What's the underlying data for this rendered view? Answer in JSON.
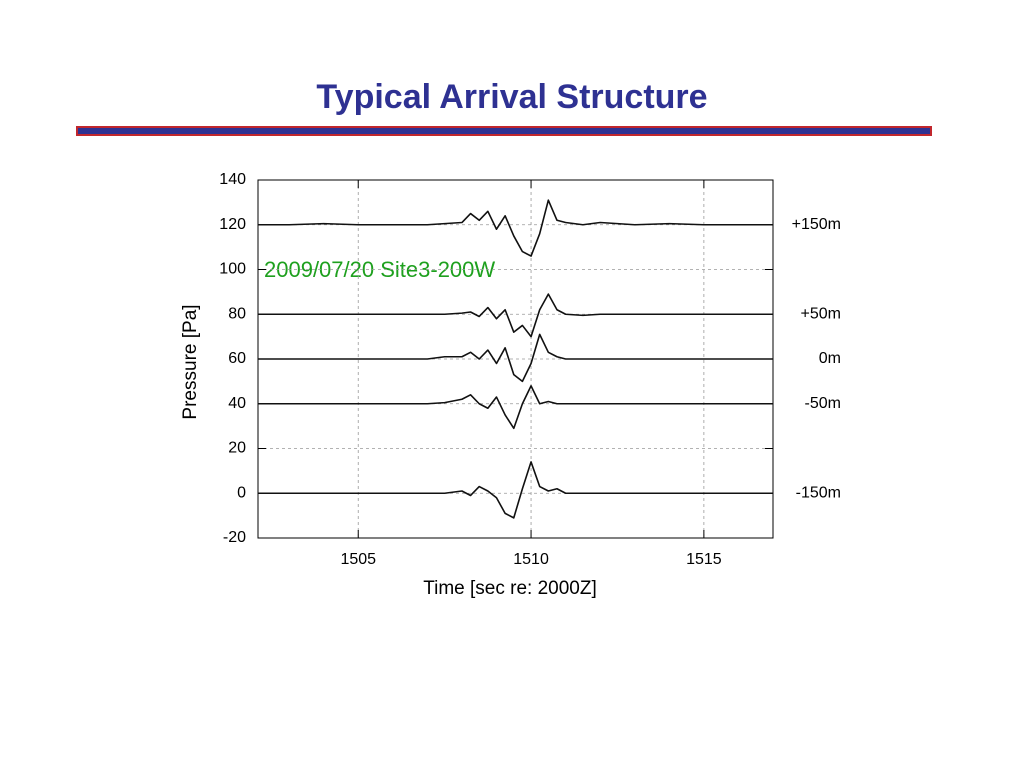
{
  "slide": {
    "title": "Typical Arrival Structure"
  },
  "chart_data": {
    "type": "line",
    "annotation": "2009/07/20  Site3-200W",
    "xlabel": "Time [sec re: 2000Z]",
    "ylabel": "Pressure [Pa]",
    "xlim": [
      1502.1,
      1517
    ],
    "ylim": [
      -20,
      140
    ],
    "xticks": [
      1505,
      1510,
      1515
    ],
    "yticks": [
      -20,
      0,
      20,
      40,
      60,
      80,
      100,
      120,
      140
    ],
    "grid": true,
    "x": [
      1502.1,
      1503,
      1504,
      1505,
      1506,
      1507,
      1507.5,
      1508,
      1508.25,
      1508.5,
      1508.75,
      1509,
      1509.25,
      1509.5,
      1509.75,
      1510,
      1510.25,
      1510.5,
      1510.75,
      1511,
      1511.5,
      1512,
      1513,
      1514,
      1515,
      1516,
      1517
    ],
    "series": [
      {
        "name": "+150m",
        "color": "#111111",
        "values": [
          120,
          120,
          120.5,
          120,
          120,
          120,
          120.5,
          121,
          125,
          122,
          126,
          118,
          124,
          115,
          108,
          106,
          116,
          131,
          122,
          121,
          120,
          121,
          120,
          120.5,
          120,
          120,
          120
        ]
      },
      {
        "name": "+50m",
        "color": "#111111",
        "values": [
          80,
          80,
          80,
          80,
          80,
          80,
          80,
          80.5,
          81,
          79,
          83,
          78,
          82,
          72,
          75,
          70,
          82,
          89,
          82,
          80,
          79.5,
          80,
          80,
          80,
          80,
          80,
          80
        ]
      },
      {
        "name": "0m",
        "color": "#111111",
        "values": [
          60,
          60,
          60,
          60,
          60,
          60,
          61,
          61,
          63,
          60,
          64,
          58,
          65,
          53,
          50,
          58,
          71,
          63,
          61,
          60,
          60,
          60,
          60,
          60,
          60,
          60,
          60
        ]
      },
      {
        "name": "-50m",
        "color": "#111111",
        "values": [
          40,
          40,
          40,
          40,
          40,
          40,
          40.5,
          42,
          44,
          40,
          38,
          43,
          35,
          29,
          40,
          48,
          40,
          41,
          40,
          40,
          40,
          40,
          40,
          40,
          40,
          40,
          40
        ]
      },
      {
        "name": "-150m",
        "color": "#111111",
        "values": [
          0,
          0,
          0,
          0,
          0,
          0,
          0,
          1,
          -1,
          3,
          1,
          -2,
          -9,
          -11,
          2,
          14,
          3,
          1,
          2,
          0,
          0,
          0,
          0,
          0,
          0,
          0,
          0
        ]
      }
    ]
  }
}
